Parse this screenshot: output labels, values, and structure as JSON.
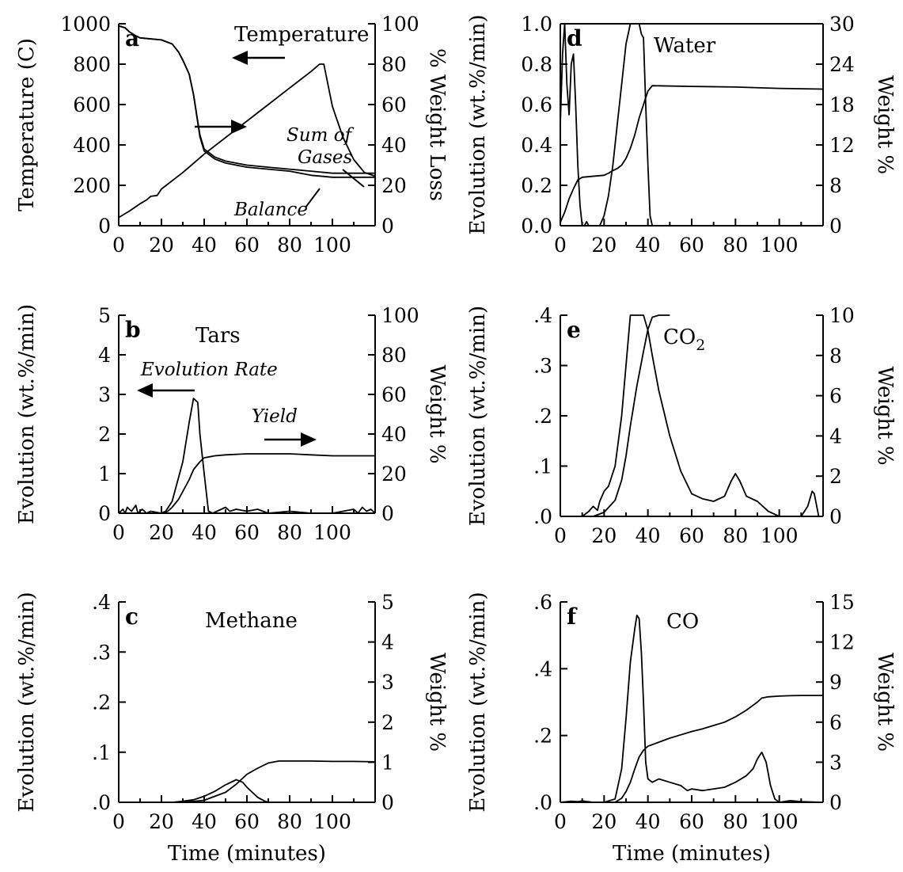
{
  "chart_data": [
    {
      "panel": "a",
      "type": "line",
      "xlabel": "",
      "ylabel": "Temperature (C)",
      "y2label": "% Weight Loss",
      "xlim": [
        0,
        120
      ],
      "ylim": [
        0,
        1100
      ],
      "y2lim": [
        0,
        100
      ],
      "x_ticks": [
        "0",
        "20",
        "40",
        "60",
        "80",
        "100"
      ],
      "y_ticks": [
        "0",
        "200",
        "400",
        "600",
        "800",
        "1000"
      ],
      "y2_ticks": [
        "0",
        "20",
        "40",
        "60",
        "80",
        "100"
      ],
      "annotations": [
        "Temperature",
        "Sum of Gases",
        "Balance"
      ],
      "series": [
        {
          "name": "Temperature",
          "axis": "left",
          "x": [
            0,
            5,
            10,
            13,
            15,
            18,
            20,
            30,
            40,
            50,
            60,
            70,
            80,
            90,
            94,
            96,
            100,
            105,
            110,
            115,
            120
          ],
          "y": [
            45,
            80,
            120,
            140,
            160,
            165,
            200,
            290,
            390,
            480,
            570,
            660,
            750,
            840,
            880,
            880,
            650,
            480,
            360,
            290,
            270
          ]
        },
        {
          "name": "Sum of Gases",
          "axis": "right",
          "x": [
            0,
            3,
            5,
            8,
            10,
            20,
            25,
            28,
            30,
            33,
            35,
            38,
            40,
            45,
            50,
            60,
            70,
            80,
            90,
            100,
            110,
            120
          ],
          "y": [
            99,
            98,
            96,
            94,
            93,
            92,
            90,
            86,
            82,
            75,
            65,
            45,
            38,
            34,
            32,
            30,
            29,
            28,
            27,
            26,
            26,
            26
          ]
        },
        {
          "name": "Balance",
          "axis": "right",
          "x": [
            0,
            3,
            5,
            8,
            10,
            20,
            25,
            28,
            30,
            33,
            35,
            38,
            40,
            45,
            50,
            60,
            70,
            80,
            90,
            100,
            110,
            120
          ],
          "y": [
            99,
            98,
            96,
            94,
            93,
            92,
            90,
            86,
            82,
            75,
            65,
            44,
            37,
            33,
            31,
            29,
            28,
            27,
            25,
            24,
            24,
            24
          ]
        }
      ]
    },
    {
      "panel": "b",
      "type": "line",
      "title": "Tars",
      "xlabel": "",
      "ylabel": "Evolution (wt.%/min)",
      "y2label": "Weight %",
      "xlim": [
        0,
        120
      ],
      "ylim": [
        0,
        5
      ],
      "y2lim": [
        0,
        100
      ],
      "x_ticks": [
        "0",
        "20",
        "40",
        "60",
        "80",
        "100"
      ],
      "y_ticks": [
        "0",
        "1",
        "2",
        "3",
        "4",
        "5"
      ],
      "y2_ticks": [
        "0",
        "20",
        "40",
        "60",
        "80",
        "100"
      ],
      "annotations": [
        "Evolution Rate",
        "Yield"
      ],
      "series": [
        {
          "name": "Evolution Rate",
          "axis": "left",
          "x": [
            0,
            2,
            3,
            4,
            6,
            8,
            9,
            11,
            13,
            15,
            20,
            22,
            25,
            28,
            30,
            33,
            35,
            37,
            38,
            40,
            42,
            44,
            50,
            52,
            55,
            60,
            65,
            70,
            80,
            90,
            100,
            110,
            112,
            114,
            116,
            118,
            120
          ],
          "y": [
            0,
            0.1,
            0,
            0.15,
            0.05,
            0.2,
            0,
            0.1,
            0,
            0.05,
            0,
            0.05,
            0.3,
            0.9,
            1.3,
            2.3,
            2.9,
            2.8,
            2.0,
            1.0,
            0.05,
            0,
            0.15,
            0.05,
            0.1,
            0.05,
            0.1,
            0,
            0.05,
            0,
            0,
            0.1,
            0,
            0.15,
            0.05,
            0.1,
            0
          ]
        },
        {
          "name": "Yield",
          "axis": "right",
          "x": [
            0,
            20,
            23,
            25,
            28,
            30,
            33,
            35,
            38,
            40,
            45,
            50,
            60,
            70,
            80,
            90,
            100,
            110,
            120
          ],
          "y": [
            0,
            0,
            1,
            3,
            7,
            11,
            17,
            22,
            26,
            28,
            29,
            29.5,
            30,
            30,
            30,
            29.5,
            29,
            29,
            29
          ]
        }
      ]
    },
    {
      "panel": "c",
      "type": "line",
      "title": "Methane",
      "xlabel": "Time (minutes)",
      "ylabel": "Evolution (wt.%/min)",
      "y2label": "Weight %",
      "xlim": [
        0,
        120
      ],
      "ylim": [
        0,
        0.4
      ],
      "y2lim": [
        0,
        5
      ],
      "x_ticks": [
        "0",
        "20",
        "40",
        "60",
        "80",
        "100"
      ],
      "y_ticks": [
        ".0",
        ".1",
        ".2",
        ".3",
        ".4"
      ],
      "y2_ticks": [
        "0",
        "1",
        "2",
        "3",
        "4",
        "5"
      ],
      "series": [
        {
          "name": "Evolution Rate",
          "axis": "left",
          "x": [
            0,
            25,
            30,
            35,
            40,
            45,
            50,
            55,
            58,
            60,
            63,
            65,
            68,
            70,
            120
          ],
          "y": [
            0,
            0,
            0.002,
            0.005,
            0.012,
            0.022,
            0.035,
            0.045,
            0.04,
            0.03,
            0.018,
            0.01,
            0.003,
            0,
            0
          ]
        },
        {
          "name": "Yield",
          "axis": "right",
          "x": [
            0,
            30,
            40,
            45,
            50,
            55,
            60,
            65,
            70,
            75,
            80,
            90,
            100,
            110,
            120
          ],
          "y": [
            0,
            0,
            0.05,
            0.15,
            0.25,
            0.45,
            0.7,
            0.85,
            0.98,
            1.03,
            1.03,
            1.03,
            1.02,
            1.02,
            1.01
          ]
        }
      ]
    },
    {
      "panel": "d",
      "type": "line",
      "title": "Water",
      "xlabel": "",
      "ylabel": "Evolution (wt.%/min)",
      "y2label": "Weight %",
      "xlim": [
        0,
        120
      ],
      "ylim": [
        0,
        1.0
      ],
      "y2lim": [
        0,
        30
      ],
      "x_ticks": [
        "0",
        "20",
        "40",
        "60",
        "80",
        "100"
      ],
      "y_ticks": [
        "0.0",
        "0.2",
        "0.4",
        "0.6",
        "0.8",
        "1.0"
      ],
      "y2_ticks": [
        "0",
        "8",
        "12",
        "18",
        "24",
        "30"
      ],
      "series": [
        {
          "name": "Evolution Rate",
          "axis": "left",
          "x": [
            0,
            1,
            2,
            3,
            4,
            5,
            6,
            7,
            8,
            9,
            10,
            11,
            12,
            13,
            14,
            15,
            18,
            20,
            22,
            24,
            26,
            28,
            30,
            32,
            34,
            36,
            37,
            38,
            39,
            40,
            41,
            42,
            120
          ],
          "y": [
            0.5,
            0.85,
            1.0,
            0.7,
            0.55,
            0.8,
            0.85,
            0.6,
            0.3,
            0.1,
            0,
            0,
            0.02,
            0,
            0,
            0,
            0,
            0.05,
            0.15,
            0.3,
            0.5,
            0.7,
            0.9,
            1.0,
            1.0,
            1.0,
            0.95,
            0.93,
            0.6,
            0.3,
            0.05,
            0,
            0
          ]
        },
        {
          "name": "Yield",
          "axis": "right",
          "x": [
            0,
            2,
            4,
            6,
            8,
            10,
            20,
            22,
            24,
            26,
            28,
            30,
            32,
            34,
            36,
            38,
            40,
            42,
            60,
            80,
            100,
            120
          ],
          "y": [
            0.5,
            2,
            4,
            5.5,
            6.8,
            7.2,
            7.5,
            7.8,
            8.2,
            8.5,
            9,
            10,
            11.5,
            13.5,
            16,
            18,
            20,
            20.8,
            20.7,
            20.6,
            20.4,
            20.3
          ]
        }
      ]
    },
    {
      "panel": "e",
      "type": "line",
      "title": "CO2",
      "xlabel": "",
      "ylabel": "Evolution (wt.%/min)",
      "y2label": "Weight %",
      "xlim": [
        0,
        120
      ],
      "ylim": [
        0,
        0.4
      ],
      "y2lim": [
        0,
        10
      ],
      "x_ticks": [
        "0",
        "20",
        "40",
        "60",
        "80",
        "100"
      ],
      "y_ticks": [
        ".0",
        ".1",
        ".2",
        ".3",
        ".4"
      ],
      "y2_ticks": [
        "0",
        "2",
        "4",
        "6",
        "8",
        "10"
      ],
      "series": [
        {
          "name": "Evolution Rate",
          "axis": "left",
          "x": [
            0,
            10,
            13,
            15,
            17,
            18,
            20,
            22,
            25,
            28,
            30,
            32,
            35,
            38,
            40,
            42,
            45,
            50,
            55,
            60,
            65,
            70,
            75,
            78,
            80,
            82,
            85,
            90,
            95,
            100,
            110,
            113,
            115,
            116,
            118
          ],
          "y": [
            0,
            0,
            0.01,
            0.02,
            0.012,
            0.03,
            0.05,
            0.06,
            0.1,
            0.2,
            0.3,
            0.4,
            0.4,
            0.4,
            0.37,
            0.32,
            0.25,
            0.16,
            0.09,
            0.045,
            0.035,
            0.03,
            0.04,
            0.07,
            0.085,
            0.07,
            0.04,
            0.03,
            0.01,
            0,
            0,
            0.02,
            0.05,
            0.045,
            0
          ]
        },
        {
          "name": "Yield",
          "axis": "right",
          "x": [
            0,
            15,
            20,
            25,
            28,
            30,
            32,
            35,
            38,
            40,
            42,
            45,
            48,
            50
          ],
          "y": [
            0,
            0,
            0.2,
            0.8,
            1.8,
            3,
            4.5,
            6.5,
            8.2,
            9.3,
            9.9,
            10,
            10,
            10
          ]
        }
      ]
    },
    {
      "panel": "f",
      "type": "line",
      "title": "CO",
      "xlabel": "Time (minutes)",
      "ylabel": "Evolution (wt.%/min)",
      "y2label": "Weight %",
      "xlim": [
        0,
        120
      ],
      "ylim": [
        0,
        0.6
      ],
      "y2lim": [
        0,
        15
      ],
      "x_ticks": [
        "0",
        "20",
        "40",
        "60",
        "80",
        "100"
      ],
      "y_ticks": [
        ".0",
        ".2",
        ".4",
        ".6"
      ],
      "y2_ticks": [
        "0",
        "3",
        "6",
        "9",
        "12",
        "15"
      ],
      "series": [
        {
          "name": "Evolution Rate",
          "axis": "left",
          "x": [
            0,
            5,
            8,
            10,
            15,
            20,
            25,
            28,
            30,
            32,
            34,
            35,
            36,
            37,
            38,
            39,
            40,
            42,
            45,
            50,
            55,
            58,
            60,
            65,
            70,
            75,
            80,
            85,
            88,
            90,
            92,
            94,
            96,
            98,
            100,
            105,
            110,
            120
          ],
          "y": [
            0,
            0.003,
            0.002,
            0.004,
            0,
            0,
            0.01,
            0.1,
            0.25,
            0.42,
            0.52,
            0.56,
            0.55,
            0.45,
            0.3,
            0.12,
            0.07,
            0.06,
            0.07,
            0.06,
            0.05,
            0.035,
            0.04,
            0.035,
            0.04,
            0.045,
            0.06,
            0.08,
            0.1,
            0.13,
            0.15,
            0.12,
            0.05,
            0.01,
            0,
            0.005,
            0.002,
            0
          ]
        },
        {
          "name": "Yield",
          "axis": "right",
          "x": [
            0,
            25,
            28,
            30,
            32,
            34,
            36,
            38,
            40,
            45,
            50,
            55,
            60,
            65,
            70,
            75,
            80,
            85,
            90,
            92,
            95,
            100,
            105,
            110,
            115,
            120
          ],
          "y": [
            0,
            0,
            0.3,
            0.8,
            1.5,
            2.5,
            3.4,
            3.9,
            4.2,
            4.5,
            4.8,
            5.05,
            5.3,
            5.5,
            5.75,
            6,
            6.4,
            6.9,
            7.5,
            7.8,
            7.9,
            7.95,
            7.98,
            8,
            8,
            8
          ]
        }
      ]
    }
  ],
  "labels": {
    "panel_a": {
      "letter": "a",
      "y2_title": "% Weight Loss",
      "y_title": "Temperature (C)",
      "annot_temperature": "Temperature",
      "annot_sum": "Sum of Gases",
      "annot_balance": "Balance"
    },
    "panel_b": {
      "letter": "b",
      "title": "Tars",
      "annot_rate": "Evolution Rate",
      "annot_yield": "Yield"
    },
    "panel_c": {
      "letter": "c",
      "title": "Methane",
      "x_title": "Time (minutes)"
    },
    "panel_d": {
      "letter": "d",
      "title": "Water"
    },
    "panel_e": {
      "letter": "e",
      "title_base": "CO",
      "title_sub": "2"
    },
    "panel_f": {
      "letter": "f",
      "title": "CO",
      "x_title": "Time (minutes)"
    },
    "evolution_title": "Evolution (wt.%/min)",
    "weight_title": "Weight %"
  }
}
